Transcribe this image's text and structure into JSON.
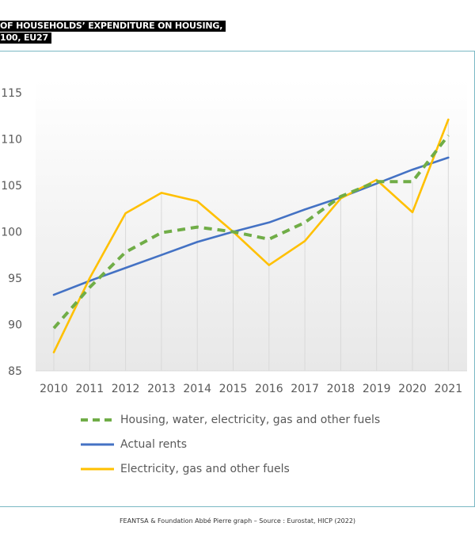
{
  "header": {
    "title_line1": "OF HOUSEHOLDS’ EXPENDITURE ON HOUSING,",
    "title_line2": "100, EU27"
  },
  "colors": {
    "housing": "#70ad47",
    "rents": "#4472c4",
    "electricity": "#ffc000",
    "grid": "#d9d9d9",
    "frame": "#7ab8c4"
  },
  "chart_data": {
    "type": "line",
    "x": [
      "2010",
      "2011",
      "2012",
      "2013",
      "2014",
      "2015",
      "2016",
      "2017",
      "2018",
      "2019",
      "2020",
      "2021"
    ],
    "ylim": [
      85,
      115
    ],
    "yticks": [
      "85",
      "90",
      "95",
      "100",
      "105",
      "110",
      "115"
    ],
    "grid": "vertical",
    "legend_position": "bottom",
    "series": [
      {
        "name": "Housing, water, electricity, gas and other fuels",
        "style": "dashed",
        "values": [
          89.6,
          94.0,
          97.8,
          99.9,
          100.5,
          100.0,
          99.2,
          101.0,
          103.8,
          105.4,
          105.4,
          110.4
        ]
      },
      {
        "name": "Actual rents",
        "style": "solid",
        "values": [
          93.2,
          94.7,
          96.1,
          97.5,
          98.9,
          100.0,
          101.0,
          102.4,
          103.7,
          105.2,
          106.7,
          108.0
        ]
      },
      {
        "name": "Electricity, gas and other fuels",
        "style": "solid",
        "values": [
          87.0,
          95.0,
          102.0,
          104.2,
          103.3,
          100.0,
          96.4,
          99.0,
          103.6,
          105.6,
          102.1,
          112.1
        ]
      }
    ]
  },
  "footer": {
    "source": "FEANTSA & Foundation Abbé Pierre graph – Source : Eurostat, HICP (2022)"
  }
}
